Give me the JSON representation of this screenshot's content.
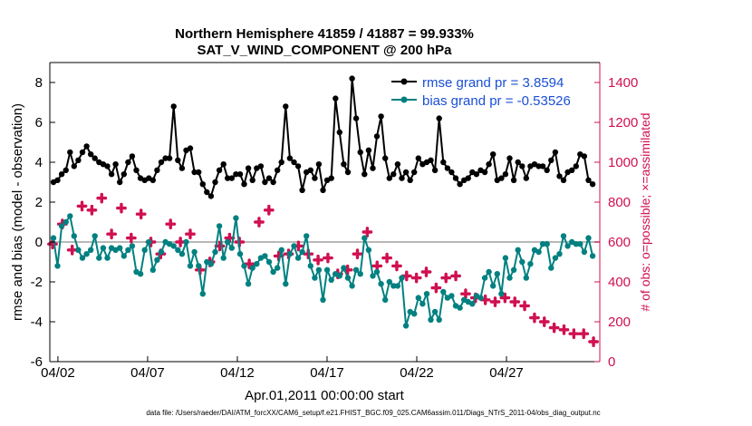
{
  "chart_data": {
    "type": "line",
    "title": "Northern Hemisphere 41859 / 41887 = 99.933%",
    "subtitle": "SAT_V_WIND_COMPONENT @ 200 hPa",
    "ylabel": "rmse and bias (model - observation)",
    "ylabel_right": "# of obs: o=possible; ×=assimilated",
    "xlabel": "Apr.01,2011 00:00:00 start",
    "footnote": "data file: /Users/raeder/DAI/ATM_forcXX/CAM6_setup/f.e21.FHIST_BGC.f09_025.CAM6assim.011/Diags_NTrS_2011-04/obs_diag_output.nc",
    "xlim": [
      1.55,
      32.2
    ],
    "ylim": [
      -6,
      9
    ],
    "ylim_right": [
      0,
      1500
    ],
    "x_ticks": [
      2,
      7,
      12,
      17,
      22,
      27
    ],
    "x_tick_labels": [
      "04/02",
      "04/07",
      "04/12",
      "04/17",
      "04/22",
      "04/27"
    ],
    "y_ticks": [
      -6,
      -4,
      -2,
      0,
      2,
      4,
      6,
      8
    ],
    "y_tick_labels": [
      "-6",
      "-4",
      "-2",
      "0",
      "2",
      "4",
      "6",
      "8"
    ],
    "y_ticks_right": [
      0,
      200,
      400,
      600,
      800,
      1000,
      1200,
      1400
    ],
    "y_tick_labels_right": [
      "0",
      "200",
      "400",
      "600",
      "800",
      "1000",
      "1200",
      "1400"
    ],
    "legend_position": "top-right",
    "series": [
      {
        "name": "rmse grand pr = 3.8594",
        "axis": "left",
        "color": "#000000",
        "marker": "dot",
        "values": [
          3.0,
          3.1,
          3.4,
          3.6,
          4.5,
          3.8,
          4.1,
          4.5,
          4.8,
          4.4,
          4.2,
          4.0,
          3.9,
          3.8,
          3.4,
          3.9,
          3.0,
          3.4,
          4.0,
          4.3,
          3.6,
          3.2,
          3.1,
          3.2,
          3.1,
          3.6,
          4.0,
          4.2,
          4.2,
          6.8,
          4.1,
          3.7,
          4.6,
          4.7,
          3.5,
          3.5,
          2.9,
          2.5,
          2.3,
          3.0,
          3.6,
          3.9,
          3.2,
          3.2,
          3.4,
          3.4,
          2.9,
          3.7,
          3.1,
          3.7,
          3.8,
          3.0,
          3.2,
          3.0,
          3.6,
          4.0,
          6.8,
          4.2,
          4.0,
          3.8,
          2.6,
          3.5,
          3.6,
          3.2,
          3.9,
          2.6,
          3.1,
          3.2,
          7.2,
          5.5,
          3.9,
          3.5,
          8.2,
          6.2,
          4.5,
          3.4,
          4.6,
          3.7,
          5.3,
          6.3,
          4.2,
          3.2,
          3.4,
          3.9,
          3.2,
          3.5,
          3.1,
          3.5,
          4.2,
          3.9,
          4.0,
          4.1,
          3.6,
          6.2,
          4.0,
          3.7,
          3.5,
          3.2,
          2.9,
          3.1,
          3.2,
          3.5,
          3.4,
          3.6,
          3.5,
          3.9,
          4.4,
          3.1,
          3.2,
          3.4,
          4.2,
          3.1,
          4.0,
          3.8,
          3.2,
          3.8,
          3.9,
          3.8,
          3.8,
          3.6,
          4.1,
          4.5,
          3.3,
          3.1,
          3.5,
          3.6,
          3.8,
          4.4,
          4.3,
          3.1,
          2.9
        ]
      },
      {
        "name": "bias grand pr = -0.53526",
        "axis": "left",
        "color": "#008080",
        "marker": "dot",
        "values": [
          0.2,
          -1.2,
          0.8,
          1.0,
          1.3,
          0.3,
          -0.4,
          -0.8,
          -0.6,
          -0.4,
          0.3,
          -0.8,
          -0.3,
          -0.8,
          -0.3,
          -0.4,
          -0.3,
          -0.7,
          -0.4,
          -0.2,
          -1.5,
          -1.6,
          -0.4,
          0.0,
          -1.4,
          -0.9,
          -0.5,
          0.0,
          -0.1,
          -0.2,
          -0.4,
          -0.6,
          0.0,
          -1.2,
          -0.5,
          -1.2,
          -2.6,
          -1.0,
          -1.1,
          -0.5,
          0.8,
          -0.8,
          0.0,
          -0.3,
          1.2,
          -0.6,
          -1.2,
          -2.1,
          -1.3,
          -1.1,
          -0.8,
          -0.7,
          -1.0,
          -1.5,
          -1.3,
          -0.4,
          -2.1,
          -0.6,
          -0.2,
          -0.8,
          -0.5,
          0.3,
          -1.2,
          -1.8,
          -1.4,
          -2.9,
          -1.4,
          -1.9,
          -1.6,
          -1.7,
          -1.3,
          -1.8,
          -2.2,
          -1.4,
          -1.6,
          0.2,
          -0.4,
          -1.7,
          -1.5,
          -2.1,
          -2.9,
          -2.0,
          -2.2,
          -2.2,
          -1.8,
          -4.2,
          -3.5,
          -3.6,
          -2.8,
          -3.1,
          -2.6,
          -3.9,
          -3.5,
          -3.9,
          -2.5,
          -2.8,
          -2.7,
          -3.2,
          -3.3,
          -2.9,
          -3.0,
          -3.1,
          -2.7,
          -2.8,
          -1.8,
          -1.5,
          -2.2,
          -1.6,
          -2.6,
          -0.8,
          -1.8,
          -1.4,
          -0.4,
          -1.0,
          -1.8,
          -1.1,
          -0.4,
          -0.5,
          -0.1,
          -0.1,
          -1.3,
          -0.8,
          -0.6,
          0.3,
          -0.2,
          0.0,
          -0.1,
          -0.1,
          -0.5,
          0.2,
          -0.7
        ]
      },
      {
        "name": "obs possible",
        "axis": "right",
        "color": "#d01050",
        "marker": "plus",
        "values": [
          590,
          690,
          560,
          780,
          760,
          820,
          640,
          770,
          620,
          740,
          600,
          540,
          690,
          600,
          640,
          460,
          500,
          580,
          620,
          600,
          490,
          700,
          760,
          530,
          540,
          580,
          540,
          510,
          520,
          440,
          460,
          540,
          650,
          480,
          520,
          480,
          430,
          420,
          450,
          370,
          420,
          430,
          340,
          320,
          310,
          300,
          320,
          300,
          280,
          220,
          200,
          170,
          160,
          140,
          140,
          100
        ]
      }
    ]
  }
}
